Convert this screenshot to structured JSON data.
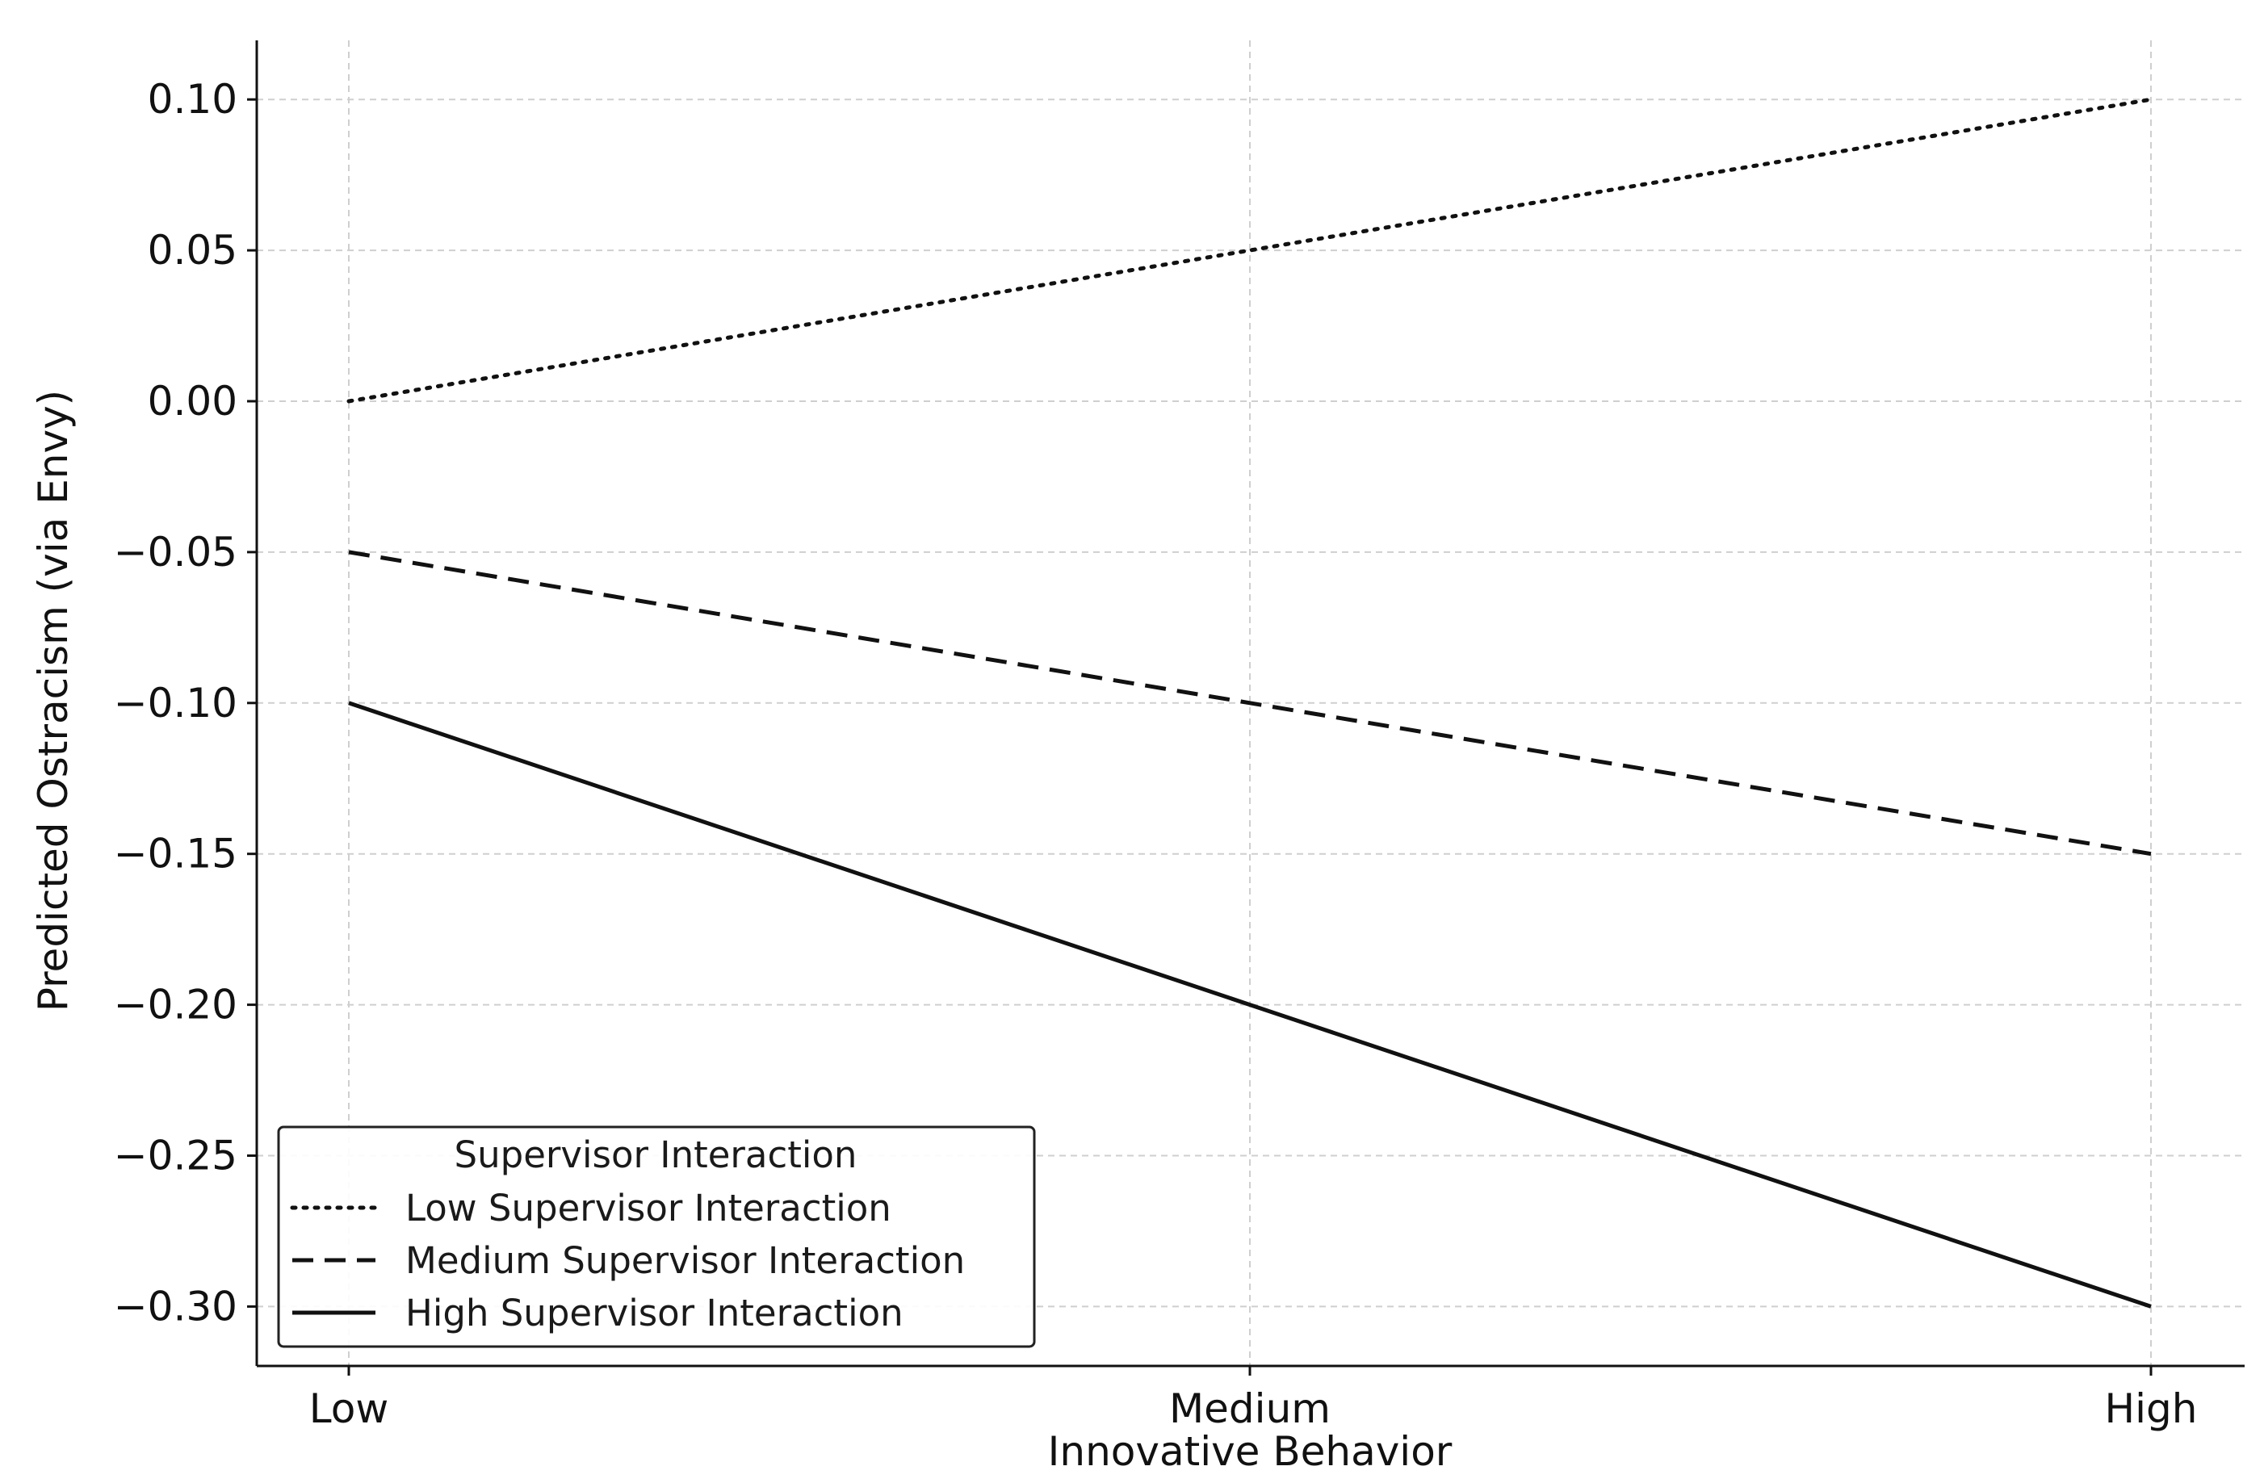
{
  "chart_data": {
    "type": "line",
    "title": "",
    "xlabel": "Innovative Behavior",
    "ylabel": "Predicted Ostracism (via Envy)",
    "categories": [
      "Low",
      "Medium",
      "High"
    ],
    "ylim": [
      -0.32,
      0.12
    ],
    "yticks": [
      0.1,
      0.05,
      0.0,
      -0.05,
      -0.1,
      -0.15,
      -0.2,
      -0.25,
      -0.3
    ],
    "ytick_labels": [
      "0.10",
      "0.05",
      "0.00",
      "−0.05",
      "−0.10",
      "−0.15",
      "−0.20",
      "−0.25",
      "−0.30"
    ],
    "grid": true,
    "legend": {
      "title": "Supervisor Interaction",
      "placement": "lower-left"
    },
    "series": [
      {
        "name": "Low Supervisor Interaction",
        "style": "dotted",
        "values": [
          0.0,
          0.05,
          0.1
        ]
      },
      {
        "name": "Medium Supervisor Interaction",
        "style": "dashed",
        "values": [
          -0.05,
          -0.1,
          -0.15
        ]
      },
      {
        "name": "High Supervisor Interaction",
        "style": "solid",
        "values": [
          -0.1,
          -0.2,
          -0.3
        ]
      }
    ],
    "colors": {
      "line": "#111111",
      "grid": "#cfcfcf",
      "axis": "#111111"
    }
  }
}
